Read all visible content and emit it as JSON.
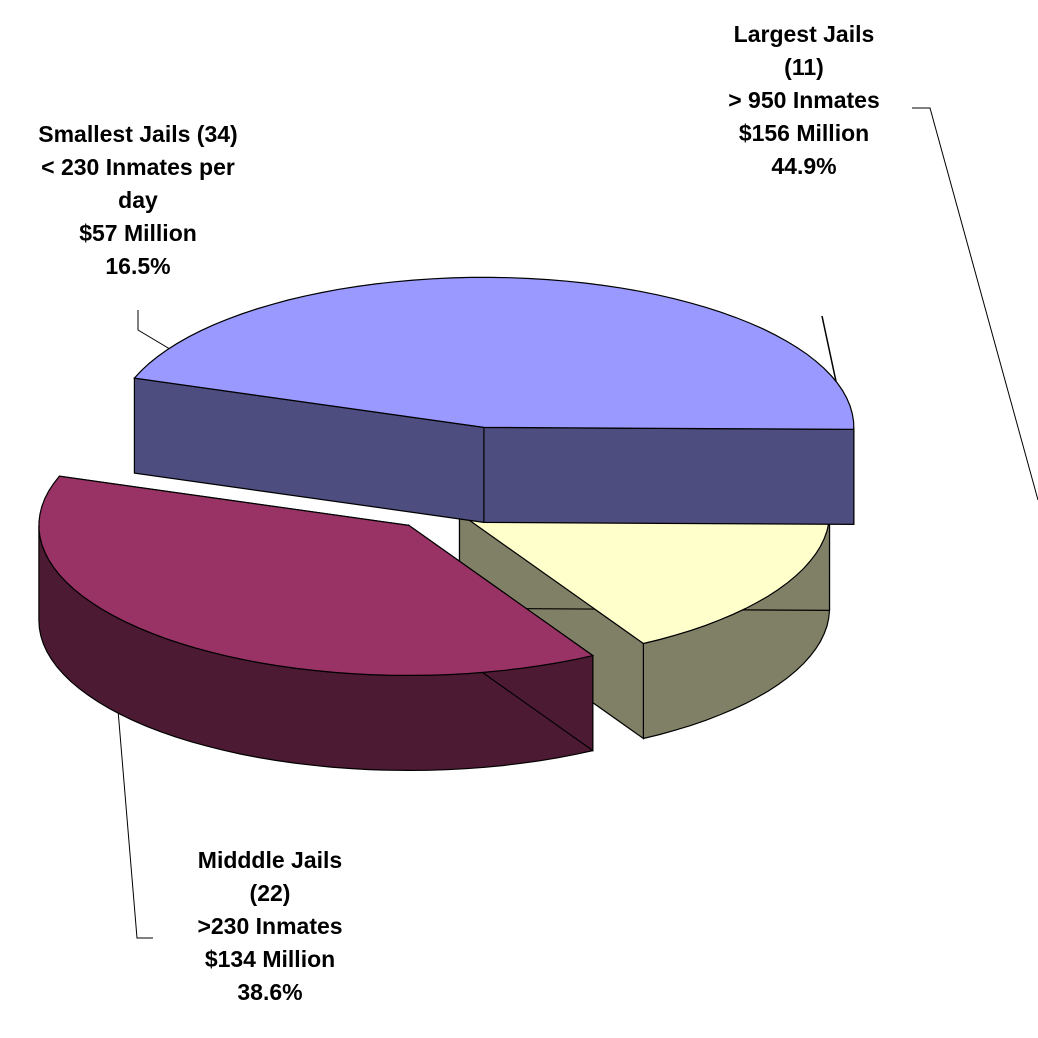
{
  "chart_data": {
    "type": "pie",
    "title": "",
    "slices": [
      {
        "name": "Largest Jails",
        "count": "(11)",
        "criteria": "> 950 Inmates",
        "amount": "$156 Million",
        "percent": 44.9,
        "percent_label": "44.9%",
        "top_color": "#9999FF",
        "side_color": "#4D4D80",
        "label_lines": [
          "Largest  Jails",
          "(11)",
          "> 950 Inmates",
          "$156 Million",
          "44.9%"
        ]
      },
      {
        "name": "Midddle Jails",
        "count": "(22)",
        "criteria": ">230 Inmates",
        "amount": "$134 Million",
        "percent": 38.6,
        "percent_label": "38.6%",
        "top_color": "#993366",
        "side_color": "#4D1A33",
        "label_lines": [
          "Midddle  Jails",
          "(22)",
          ">230 Inmates",
          "$134 Million",
          "38.6%"
        ]
      },
      {
        "name": "Smallest Jails (34)",
        "count": "(34)",
        "criteria": "< 230 Inmates per day",
        "amount": "$57 Million",
        "percent": 16.5,
        "percent_label": "16.5%",
        "top_color": "#FFFFCC",
        "side_color": "#808066",
        "label_lines": [
          "Smallest  Jails (34)",
          "< 230 Inmates per",
          "day",
          "$57 Million",
          "16.5%"
        ]
      }
    ],
    "three_d": true,
    "exploded": true,
    "legend": "none"
  }
}
